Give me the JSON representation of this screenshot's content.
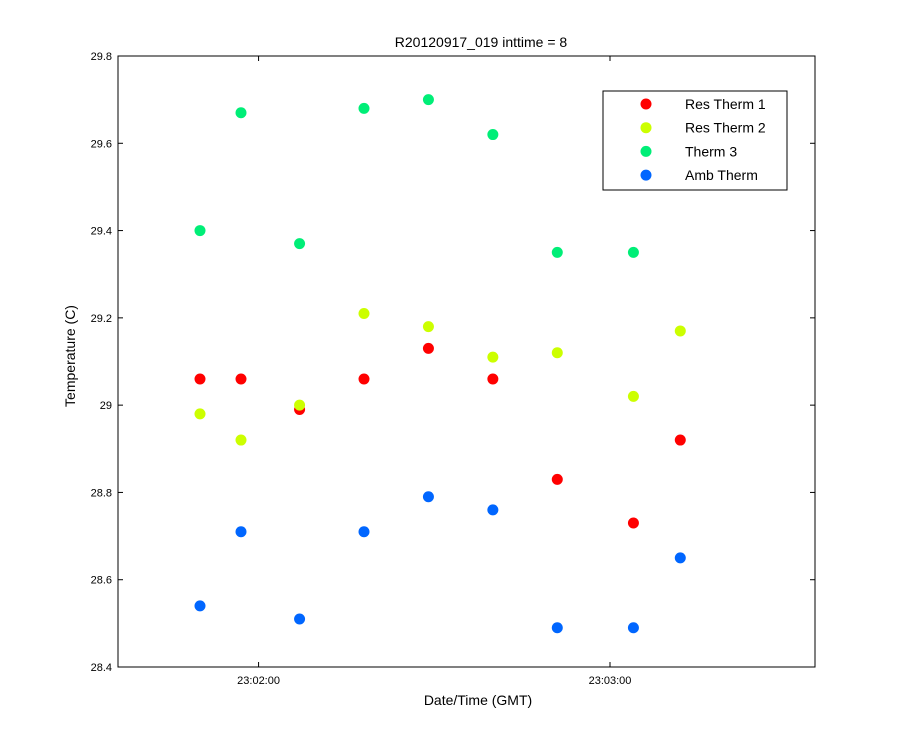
{
  "chart_data": {
    "type": "scatter",
    "title": "R20120917_019 inttime = 8",
    "xlabel": "Date/Time (GMT)",
    "ylabel": "Temperature (C)",
    "x_type": "time",
    "xlim": [
      "23:01:36",
      "23:03:35"
    ],
    "ylim": [
      28.4,
      29.8
    ],
    "x_ticks": [
      "23:02:00",
      "23:03:00"
    ],
    "y_ticks": [
      28.4,
      28.6,
      28.8,
      29,
      29.2,
      29.4,
      29.6,
      29.8
    ],
    "y_tick_labels": [
      "28.4",
      "28.6",
      "28.8",
      "29",
      "29.2",
      "29.4",
      "29.6",
      "29.8"
    ],
    "grid": false,
    "legend_position": "top-right",
    "x": [
      "23:01:50",
      "23:01:57",
      "23:02:07",
      "23:02:18",
      "23:02:29",
      "23:02:40",
      "23:02:51",
      "23:03:04",
      "23:03:12"
    ],
    "series": [
      {
        "name": "Res Therm 1",
        "color": "#ff0000",
        "x": [
          "23:01:50",
          "23:01:57",
          "23:02:07",
          "23:02:18",
          "23:02:29",
          "23:02:40",
          "23:02:51",
          "23:03:04",
          "23:03:12"
        ],
        "values": [
          29.06,
          29.06,
          28.99,
          29.06,
          29.13,
          29.06,
          28.83,
          28.73,
          28.92
        ]
      },
      {
        "name": "Res Therm 2",
        "color": "#ccff00",
        "x": [
          "23:01:50",
          "23:01:57",
          "23:02:07",
          "23:02:18",
          "23:02:29",
          "23:02:40",
          "23:02:51",
          "23:03:04",
          "23:03:12"
        ],
        "values": [
          28.98,
          28.92,
          29.0,
          29.21,
          29.18,
          29.11,
          29.12,
          29.02,
          29.17
        ]
      },
      {
        "name": "Therm 3",
        "color": "#00ee77",
        "x": [
          "23:01:50",
          "23:01:57",
          "23:02:07",
          "23:02:18",
          "23:02:29",
          "23:02:40",
          "23:02:51",
          "23:03:04"
        ],
        "values": [
          29.4,
          29.67,
          29.37,
          29.68,
          29.7,
          29.62,
          29.35,
          29.35
        ]
      },
      {
        "name": "Amb Therm",
        "color": "#0066ff",
        "x": [
          "23:01:50",
          "23:01:57",
          "23:02:07",
          "23:02:18",
          "23:02:29",
          "23:02:40",
          "23:02:51",
          "23:03:04",
          "23:03:12"
        ],
        "values": [
          28.54,
          28.71,
          28.51,
          28.71,
          28.79,
          28.76,
          28.49,
          28.49,
          28.65
        ]
      }
    ]
  }
}
